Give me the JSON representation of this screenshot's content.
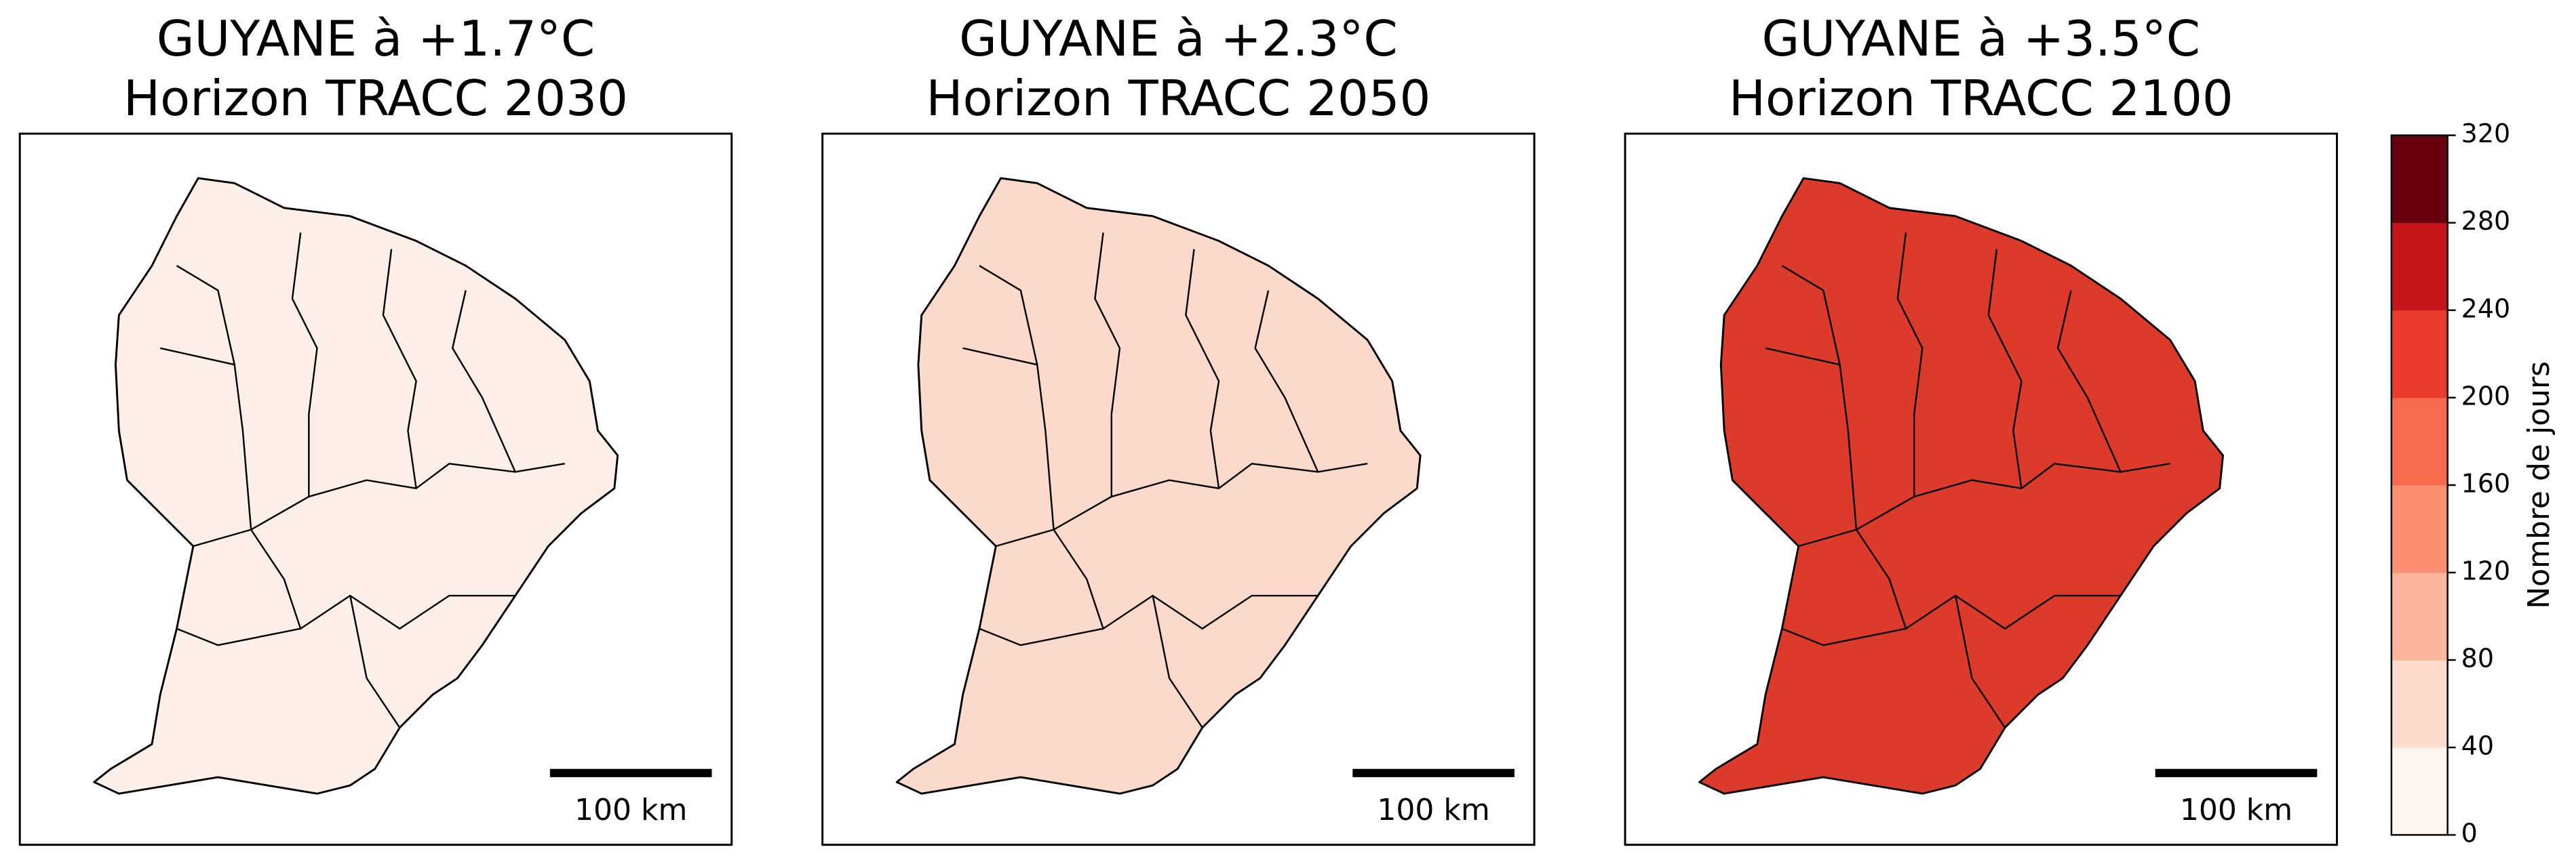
{
  "panels": [
    {
      "title": [
        "GUYANE à +1.7°C",
        "Horizon TRACC 2030"
      ],
      "scale_label": "100 km",
      "color": "#fdeee8"
    },
    {
      "title": [
        "GUYANE à +2.3°C",
        "Horizon TRACC 2050"
      ],
      "scale_label": "100 km",
      "color": "#fbd9cb"
    },
    {
      "title": [
        "GUYANE à +3.5°C",
        "Horizon TRACC 2100"
      ],
      "scale_label": "100 km",
      "color": "#dc3b2c"
    }
  ],
  "colorbar": {
    "label": "Nombre de jours",
    "ticks": [
      0,
      40,
      80,
      120,
      160,
      200,
      240,
      280,
      320
    ],
    "colors": [
      "#fff5f0",
      "#fddccf",
      "#fcb59c",
      "#fc8f6f",
      "#f86a4c",
      "#eb3b2c",
      "#c6161c",
      "#67000d"
    ]
  }
}
